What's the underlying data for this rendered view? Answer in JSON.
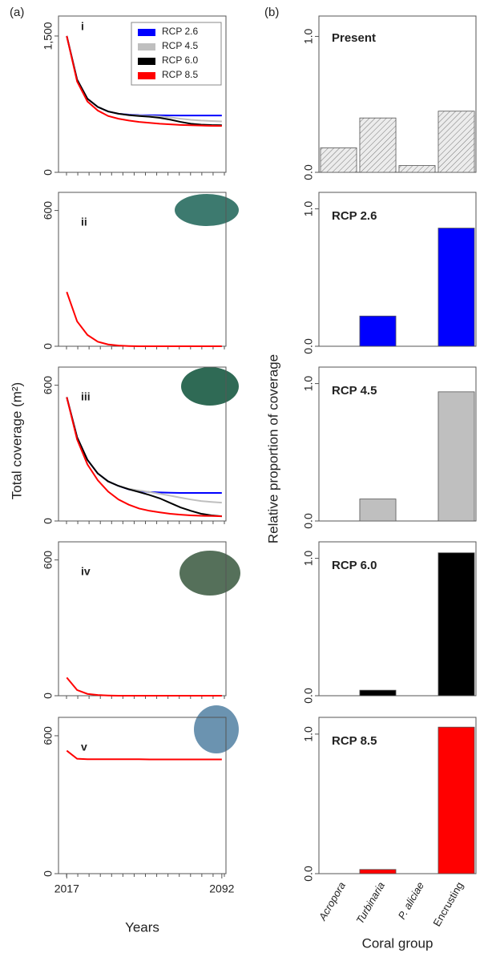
{
  "figure": {
    "panels": [
      "(a)",
      "(b)"
    ],
    "ylabel_left": "Total coverage (m²)",
    "ylabel_right": "Relative proportion of coverage"
  },
  "chart_data": [
    {
      "type": "line",
      "label": "i",
      "legend": "upper right",
      "x": [
        2017,
        2022,
        2027,
        2032,
        2037,
        2042,
        2047,
        2052,
        2057,
        2062,
        2067,
        2072,
        2077,
        2082,
        2087,
        2092
      ],
      "xlim": [
        2013,
        2094
      ],
      "ylim": [
        0,
        1720
      ],
      "yticks": [
        0,
        {
          "value": 1500,
          "label": "1,500"
        }
      ],
      "series": [
        {
          "name": "RCP 2.6",
          "color": "#0000ff",
          "values": [
            1500,
            1020,
            810,
            720,
            670,
            645,
            635,
            630,
            628,
            627,
            626,
            625,
            625,
            625,
            625,
            625
          ]
        },
        {
          "name": "RCP 4.5",
          "color": "#bfbfbf",
          "values": [
            1500,
            1020,
            810,
            720,
            670,
            645,
            632,
            625,
            620,
            615,
            605,
            590,
            578,
            570,
            565,
            560
          ]
        },
        {
          "name": "RCP 6.0",
          "color": "#000000",
          "values": [
            1500,
            1020,
            810,
            720,
            670,
            645,
            630,
            620,
            612,
            600,
            580,
            555,
            535,
            525,
            520,
            518
          ]
        },
        {
          "name": "RCP 8.5",
          "color": "#ff0000",
          "values": [
            1500,
            1000,
            780,
            680,
            620,
            590,
            570,
            555,
            545,
            535,
            528,
            522,
            518,
            515,
            512,
            510
          ]
        }
      ]
    },
    {
      "type": "line",
      "label": "ii",
      "x": [
        2017,
        2022,
        2027,
        2032,
        2037,
        2042,
        2047,
        2052,
        2057,
        2062,
        2067,
        2072,
        2077,
        2082,
        2087,
        2092
      ],
      "xlim": [
        2013,
        2094
      ],
      "ylim": [
        0,
        680
      ],
      "yticks": [
        0,
        600
      ],
      "series": [
        {
          "name": "RCP 8.5",
          "color": "#ff0000",
          "values": [
            240,
            110,
            50,
            20,
            8,
            3,
            1,
            0,
            0,
            0,
            0,
            0,
            0,
            0,
            0,
            0
          ]
        }
      ]
    },
    {
      "type": "line",
      "label": "iii",
      "x": [
        2017,
        2022,
        2027,
        2032,
        2037,
        2042,
        2047,
        2052,
        2057,
        2062,
        2067,
        2072,
        2077,
        2082,
        2087,
        2092
      ],
      "xlim": [
        2013,
        2094
      ],
      "ylim": [
        0,
        680
      ],
      "yticks": [
        0,
        600
      ],
      "series": [
        {
          "name": "RCP 2.6",
          "color": "#0000ff",
          "values": [
            547,
            370,
            270,
            210,
            175,
            155,
            140,
            132,
            128,
            126,
            125,
            124,
            124,
            124,
            124,
            124
          ]
        },
        {
          "name": "RCP 4.5",
          "color": "#bfbfbf",
          "values": [
            547,
            370,
            270,
            210,
            175,
            155,
            142,
            135,
            128,
            120,
            112,
            103,
            95,
            88,
            84,
            81
          ]
        },
        {
          "name": "RCP 6.0",
          "color": "#000000",
          "values": [
            547,
            370,
            270,
            210,
            175,
            155,
            140,
            128,
            115,
            100,
            80,
            60,
            45,
            32,
            25,
            21
          ]
        },
        {
          "name": "RCP 8.5",
          "color": "#ff0000",
          "values": [
            547,
            360,
            250,
            180,
            130,
            95,
            72,
            55,
            45,
            38,
            32,
            28,
            25,
            23,
            22,
            21
          ]
        }
      ]
    },
    {
      "type": "line",
      "label": "iv",
      "x": [
        2017,
        2022,
        2027,
        2032,
        2037,
        2042,
        2047,
        2052,
        2057,
        2062,
        2067,
        2072,
        2077,
        2082,
        2087,
        2092
      ],
      "xlim": [
        2013,
        2094
      ],
      "ylim": [
        0,
        680
      ],
      "yticks": [
        0,
        600
      ],
      "series": [
        {
          "name": "RCP 8.5",
          "color": "#ff0000",
          "values": [
            80,
            25,
            8,
            3,
            1,
            0,
            0,
            0,
            0,
            0,
            0,
            0,
            0,
            0,
            0,
            0
          ]
        }
      ]
    },
    {
      "type": "line",
      "label": "v",
      "xlabel": "Years",
      "x": [
        2017,
        2022,
        2027,
        2032,
        2037,
        2042,
        2047,
        2052,
        2057,
        2062,
        2067,
        2072,
        2077,
        2082,
        2087,
        2092
      ],
      "xlim": [
        2013,
        2094
      ],
      "xticks": [
        2017,
        2092
      ],
      "ylim": [
        0,
        680
      ],
      "yticks": [
        0,
        600
      ],
      "series": [
        {
          "name": "RCP 8.5",
          "color": "#ff0000",
          "values": [
            535,
            500,
            498,
            498,
            498,
            498,
            498,
            498,
            497,
            497,
            497,
            497,
            497,
            497,
            497,
            497
          ]
        }
      ]
    },
    {
      "type": "bar",
      "title": "Present",
      "hatch": true,
      "color": "#d9d9d9",
      "categories": [
        "Acropora",
        "Turbinaria",
        "P. aliciae",
        "Encrusting"
      ],
      "values": [
        0.18,
        0.4,
        0.05,
        0.45
      ],
      "ylim": [
        0,
        1.15
      ],
      "yticks": [
        {
          "value": 0,
          "label": "0.0"
        },
        {
          "value": 1,
          "label": "1.0"
        }
      ]
    },
    {
      "type": "bar",
      "title": "RCP 2.6",
      "color": "#0000ff",
      "categories": [
        "Acropora",
        "Turbinaria",
        "P. aliciae",
        "Encrusting"
      ],
      "values": [
        0,
        0.22,
        0,
        0.86
      ],
      "ylim": [
        0,
        1.12
      ],
      "yticks": [
        {
          "value": 0,
          "label": "0.0"
        },
        {
          "value": 1,
          "label": "1.0"
        }
      ]
    },
    {
      "type": "bar",
      "title": "RCP 4.5",
      "color": "#bfbfbf",
      "categories": [
        "Acropora",
        "Turbinaria",
        "P. aliciae",
        "Encrusting"
      ],
      "values": [
        0,
        0.16,
        0,
        0.94
      ],
      "ylim": [
        0,
        1.12
      ],
      "yticks": [
        {
          "value": 0,
          "label": "0.0"
        },
        {
          "value": 1,
          "label": "1.0"
        }
      ]
    },
    {
      "type": "bar",
      "title": "RCP 6.0",
      "color": "#000000",
      "categories": [
        "Acropora",
        "Turbinaria",
        "P. aliciae",
        "Encrusting"
      ],
      "values": [
        0,
        0.04,
        0,
        1.04
      ],
      "ylim": [
        0,
        1.12
      ],
      "yticks": [
        {
          "value": 0,
          "label": "0.0"
        },
        {
          "value": 1,
          "label": "1.0"
        }
      ]
    },
    {
      "type": "bar",
      "title": "RCP 8.5",
      "color": "#ff0000",
      "xtick_labels": true,
      "xlabel": "Coral group",
      "categories": [
        "Acropora",
        "Turbinaria",
        "P. aliciae",
        "Encrusting"
      ],
      "values": [
        0,
        0.03,
        0,
        1.05
      ],
      "ylim": [
        0,
        1.12
      ],
      "yticks": [
        {
          "value": 0,
          "label": "0.0"
        },
        {
          "value": 1,
          "label": "1.0"
        }
      ]
    }
  ]
}
